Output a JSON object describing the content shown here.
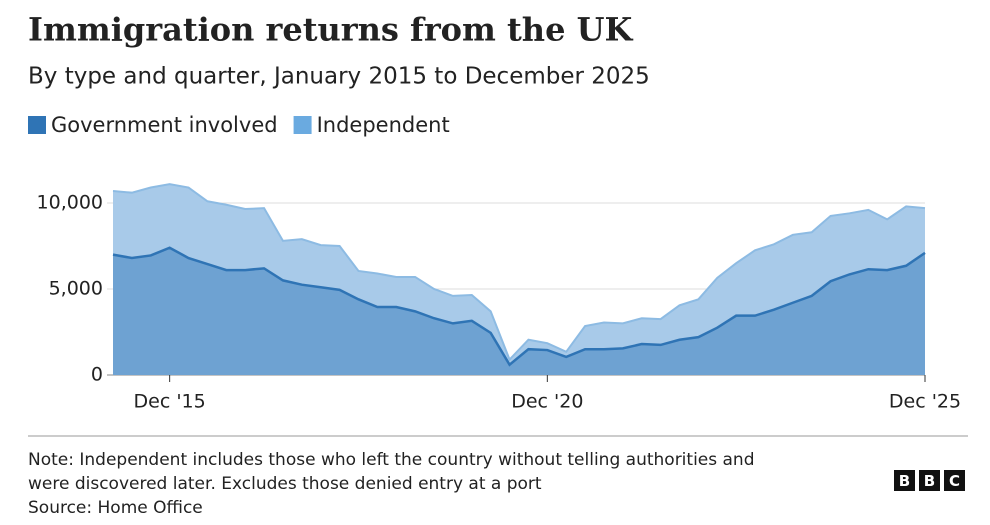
{
  "chart_data": {
    "type": "area",
    "title": "Immigration returns from the UK",
    "subtitle": "By type and quarter, January 2015 to December 2025",
    "categories": [
      null,
      null,
      null,
      "Dec '15",
      null,
      null,
      null,
      null,
      null,
      null,
      null,
      null,
      null,
      null,
      null,
      null,
      null,
      null,
      null,
      null,
      null,
      null,
      null,
      "Dec '20",
      null,
      null,
      null,
      null,
      null,
      null,
      null,
      null,
      null,
      null,
      null,
      null,
      null,
      null,
      null,
      null,
      null,
      null,
      null,
      "Dec '25"
    ],
    "series": [
      {
        "name": "Government involved",
        "color": "#2f74b5",
        "values": [
          7000,
          6800,
          6950,
          7400,
          6800,
          6450,
          6100,
          6100,
          6200,
          5500,
          5250,
          5100,
          4950,
          4400,
          3950,
          3950,
          3700,
          3300,
          3000,
          3150,
          2450,
          600,
          1500,
          1450,
          1050,
          1500,
          1500,
          1550,
          1800,
          1750,
          2050,
          2200,
          2750,
          3450,
          3450,
          3800,
          4200,
          4600,
          5450,
          5850,
          6150,
          6100,
          6350,
          7100
        ]
      },
      {
        "name": "Independent",
        "color": "#6aaae0",
        "values": [
          3700,
          3800,
          3950,
          3700,
          4100,
          3650,
          3800,
          3550,
          3500,
          2300,
          2650,
          2450,
          2550,
          1650,
          1950,
          1750,
          2000,
          1700,
          1600,
          1500,
          1250,
          300,
          550,
          400,
          300,
          1350,
          1550,
          1450,
          1500,
          1500,
          2000,
          2200,
          2900,
          3050,
          3800,
          3800,
          3950,
          3700,
          3800,
          3550,
          3450,
          2950,
          3450,
          2600
        ]
      }
    ],
    "stacked": true,
    "ylim": [
      0,
      11500
    ],
    "yticks": [
      0,
      {
        "value": 5000,
        "label": "5,000"
      },
      {
        "value": 10000,
        "label": "10,000"
      }
    ],
    "grid": true,
    "legend": "top-left",
    "note": [
      "Note: Independent includes those who left the country without telling authorities and",
      "were discovered later. Excludes those denied entry at a port"
    ],
    "source": "Source: Home Office",
    "logo": [
      "B",
      "B",
      "C"
    ]
  }
}
